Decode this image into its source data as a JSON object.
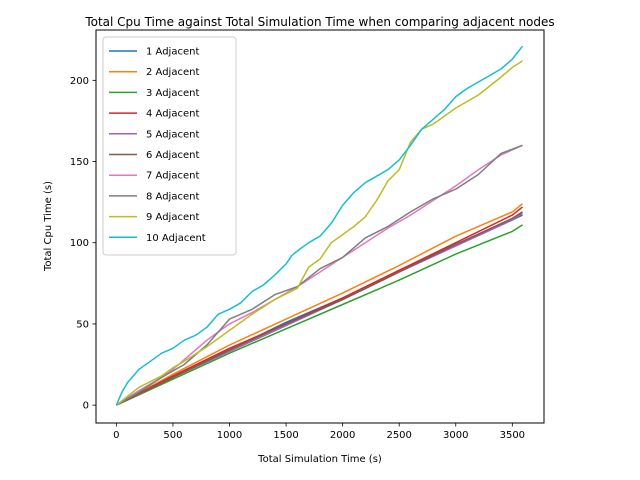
{
  "chart_data": {
    "type": "line",
    "title": "Total Cpu Time against Total Simulation Time when comparing adjacent nodes",
    "xlabel": "Total Simulation Time (s)",
    "ylabel": "Total Cpu Time (s)",
    "xlim": [
      -180,
      3780
    ],
    "ylim": [
      -11,
      231
    ],
    "xticks": [
      0,
      500,
      1000,
      1500,
      2000,
      2500,
      3000,
      3500
    ],
    "yticks": [
      0,
      50,
      100,
      150,
      200
    ],
    "grid": false,
    "legend_position": "top-left",
    "series": [
      {
        "name": "1 Adjacent",
        "color": "#1f77b4",
        "x": [
          0,
          500,
          1000,
          1500,
          2000,
          2500,
          3000,
          3500,
          3590
        ],
        "y": [
          0,
          17,
          34,
          51,
          66,
          83,
          99,
          114,
          117
        ]
      },
      {
        "name": "2 Adjacent",
        "color": "#ff7f0e",
        "x": [
          0,
          500,
          1000,
          1500,
          2000,
          2500,
          3000,
          3500,
          3590
        ],
        "y": [
          0,
          19,
          37,
          53,
          69,
          86,
          104,
          119,
          124
        ]
      },
      {
        "name": "3 Adjacent",
        "color": "#2ca02c",
        "x": [
          0,
          500,
          1000,
          1500,
          2000,
          2500,
          3000,
          3500,
          3590
        ],
        "y": [
          0,
          16,
          32,
          47,
          62,
          77,
          93,
          107,
          111
        ]
      },
      {
        "name": "4 Adjacent",
        "color": "#d62728",
        "x": [
          0,
          500,
          1000,
          1500,
          2000,
          2500,
          3000,
          3500,
          3590
        ],
        "y": [
          0,
          18,
          35,
          50,
          66,
          83,
          100,
          117,
          122
        ]
      },
      {
        "name": "5 Adjacent",
        "color": "#9467bd",
        "x": [
          0,
          500,
          1000,
          1500,
          2000,
          2500,
          3000,
          3500,
          3590
        ],
        "y": [
          0,
          17,
          33,
          49,
          65,
          82,
          98,
          114,
          118
        ]
      },
      {
        "name": "6 Adjacent",
        "color": "#8c564b",
        "x": [
          0,
          500,
          1000,
          1500,
          2000,
          2500,
          3000,
          3500,
          3590
        ],
        "y": [
          0,
          17,
          34,
          50,
          65,
          82,
          99,
          115,
          119
        ]
      },
      {
        "name": "7 Adjacent",
        "color": "#e377c2",
        "x": [
          0,
          200,
          400,
          500,
          600,
          800,
          1000,
          1200,
          1400,
          1600,
          1800,
          2000,
          2200,
          2400,
          2600,
          2800,
          3000,
          3200,
          3400,
          3590
        ],
        "y": [
          0,
          9,
          17,
          22,
          28,
          40,
          50,
          57,
          65,
          73,
          82,
          91,
          100,
          109,
          117,
          126,
          135,
          145,
          154,
          160
        ]
      },
      {
        "name": "8 Adjacent",
        "color": "#7f7f7f",
        "x": [
          0,
          200,
          400,
          600,
          800,
          1000,
          1200,
          1400,
          1600,
          1800,
          2000,
          2200,
          2400,
          2600,
          2800,
          3000,
          3200,
          3400,
          3590
        ],
        "y": [
          0,
          8,
          17,
          25,
          37,
          53,
          59,
          68,
          73,
          84,
          91,
          103,
          110,
          119,
          127,
          133,
          142,
          155,
          160
        ]
      },
      {
        "name": "9 Adjacent",
        "color": "#bcbd22",
        "x": [
          0,
          200,
          400,
          500,
          600,
          800,
          1000,
          1200,
          1400,
          1600,
          1700,
          1800,
          1900,
          2000,
          2100,
          2200,
          2300,
          2400,
          2500,
          2600,
          2700,
          2800,
          2900,
          3000,
          3200,
          3400,
          3500,
          3590
        ],
        "y": [
          0,
          11,
          18,
          23,
          27,
          36,
          46,
          56,
          65,
          72,
          85,
          90,
          100,
          105,
          110,
          116,
          126,
          138,
          145,
          162,
          170,
          173,
          178,
          183,
          191,
          202,
          208,
          212
        ]
      },
      {
        "name": "10 Adjacent",
        "color": "#17becf",
        "x": [
          0,
          50,
          100,
          200,
          300,
          400,
          500,
          600,
          700,
          800,
          900,
          1000,
          1100,
          1200,
          1300,
          1400,
          1500,
          1550,
          1600,
          1700,
          1800,
          1900,
          2000,
          2100,
          2200,
          2300,
          2400,
          2500,
          2600,
          2700,
          2800,
          2900,
          3000,
          3100,
          3200,
          3300,
          3400,
          3500,
          3590
        ],
        "y": [
          0,
          8,
          14,
          22,
          27,
          32,
          35,
          40,
          43,
          48,
          56,
          59,
          63,
          70,
          74,
          80,
          87,
          92,
          95,
          100,
          104,
          112,
          123,
          131,
          137,
          141,
          145,
          151,
          160,
          170,
          176,
          182,
          190,
          195,
          199,
          203,
          207,
          213,
          221
        ]
      }
    ]
  }
}
